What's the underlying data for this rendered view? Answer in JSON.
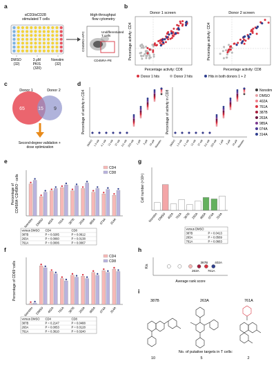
{
  "panel_letters": [
    "a",
    "b",
    "c",
    "d",
    "e",
    "f",
    "g",
    "h",
    "i"
  ],
  "colors": {
    "red": "#d9323f",
    "blue": "#2f3f8f",
    "gray": "#b8b8b8",
    "pink": "#f7b8b6",
    "lavender": "#b9b3de",
    "green": "#64b15e",
    "orange": "#e88a1a",
    "lightpink": "#f4a6a8"
  },
  "panel_a": {
    "plate_title": "αCD3/αCD28\nstimulated T cells",
    "plate_groups": [
      {
        "label": "DMSO",
        "count": "(32)"
      },
      {
        "label": "3 μM\nPKIS\n(320)",
        "count": ""
      },
      {
        "label": "Nonstim",
        "count": "(32)"
      }
    ],
    "flow_title": "High-throughput\nflow cytometry",
    "flow_gate_label": "Undifferentiated\nT cells",
    "flow_xlabel": "CD45RA-PE",
    "flow_ylabel": "CD45RO-APC"
  },
  "panel_b": {
    "titles": [
      "Donor 1 screen",
      "Donor 2 screen"
    ],
    "xlabel": "Percentage activity: CD8",
    "ylabel": "Percentage activity: CD4",
    "legend": [
      {
        "label": "Donor 1 hits",
        "color": "red"
      },
      {
        "label": "Donor 2 hits",
        "color": "gray"
      },
      {
        "label": "Hits in both donors 1 + 2",
        "color": "blue"
      }
    ]
  },
  "panel_c": {
    "left_label": "Donor 1",
    "right_label": "Donor 2",
    "left_count": "65",
    "overlap_count": "15",
    "right_count": "9",
    "arrow_caption": "Second-degree validation +\ndose optimization"
  },
  "panel_d": {
    "ylabels": [
      "Percentage of activity in CD4",
      "Percentage of activity in CD8"
    ],
    "x_ticks": [
      "DMSO",
      "1.5 nM",
      "4.1 nM",
      "12 nM",
      "37 nM",
      "111 nM",
      "333 nM",
      "1 μM",
      "3 μM",
      "10 μM",
      "Nonstim"
    ],
    "legend": [
      {
        "label": "Nonstim",
        "color": "#3a3a3a"
      },
      {
        "label": "DMSO",
        "color": "#e9a1a6"
      },
      {
        "label": "402A",
        "color": "#ef7a85"
      },
      {
        "label": "761A",
        "color": "#d9323f"
      },
      {
        "label": "387B",
        "color": "#a51d3d"
      },
      {
        "label": "263A",
        "color": "#6b1640"
      },
      {
        "label": "985A",
        "color": "#7d3a8f"
      },
      {
        "label": "074A",
        "color": "#4b3a94"
      },
      {
        "label": "314A",
        "color": "#2f3f8f"
      }
    ]
  },
  "panel_e": {
    "ylabel": "Percentage of\nCD45RA⁺CD45RO⁻ cells",
    "categories": [
      "Nonstim",
      "DMSO",
      "402A",
      "761A",
      "387B",
      "263A",
      "985A",
      "074A",
      "314A"
    ],
    "legend": [
      {
        "label": "CD4",
        "color": "pink"
      },
      {
        "label": "CD8",
        "color": "lavender"
      }
    ],
    "table_header": [
      "versus DMSO",
      "CD4",
      "CD8"
    ],
    "table_rows": [
      [
        "387B",
        "P = 0.0285",
        "P = 0.0612"
      ],
      [
        "263A",
        "P = 0.0060",
        "P = 0.0138"
      ],
      [
        "761A",
        "P = 0.0006",
        "P = 0.0067"
      ]
    ]
  },
  "panel_f": {
    "ylabel": "Percentage of CD69⁺cells",
    "categories": [
      "Nonstim",
      "DMSO",
      "402A",
      "761A",
      "387B",
      "263A",
      "985A",
      "074A",
      "314A"
    ],
    "legend": [
      {
        "label": "CD4",
        "color": "pink"
      },
      {
        "label": "CD8",
        "color": "lavender"
      }
    ],
    "table_header": [
      "versus DMSO",
      "CD4",
      "CD8"
    ],
    "table_rows": [
      [
        "387B",
        "P = 0.2147",
        "P = 0.0488"
      ],
      [
        "263A",
        "P = 0.0053",
        "P = 0.0128"
      ],
      [
        "761A",
        "P = 0.3610",
        "P = 0.0240"
      ]
    ]
  },
  "panel_g": {
    "ylabel": "Cell number (×10⁶)",
    "categories": [
      "Nonstim",
      "DMSO",
      "402A",
      "761A",
      "387B",
      "263A",
      "985A",
      "074A",
      "314A"
    ],
    "table_header": [
      "versus DMSO",
      ""
    ],
    "table_rows": [
      [
        "387B",
        "P = 0.0413"
      ],
      [
        "263A",
        "P = 0.0569"
      ],
      [
        "761A",
        "P = 0.0663"
      ]
    ]
  },
  "panel_h": {
    "ylabel": "Kis",
    "xlabel": "Average rank score",
    "labels": [
      "387B",
      "402A",
      "263A",
      "761A"
    ]
  },
  "panel_i": {
    "compounds": [
      "387B",
      "263A",
      "761A"
    ],
    "caption": "No. of putative targets in T cells:",
    "targets": [
      "10",
      "5",
      "2"
    ]
  },
  "chart_data": [
    {
      "type": "bar",
      "panel": "e",
      "categories": [
        "Nonstim",
        "DMSO",
        "402A",
        "761A",
        "387B",
        "263A",
        "985A",
        "074A",
        "314A"
      ],
      "series": [
        {
          "name": "CD4",
          "values": [
            70,
            42,
            55,
            62,
            55,
            60,
            52,
            48,
            45
          ]
        },
        {
          "name": "CD8",
          "values": [
            78,
            52,
            60,
            68,
            66,
            72,
            60,
            58,
            56
          ]
        }
      ],
      "ylim": [
        0,
        100
      ]
    },
    {
      "type": "bar",
      "panel": "f",
      "categories": [
        "Nonstim",
        "DMSO",
        "402A",
        "761A",
        "387B",
        "263A",
        "985A",
        "074A",
        "314A"
      ],
      "series": [
        {
          "name": "CD4",
          "values": [
            2,
            82,
            70,
            55,
            62,
            60,
            68,
            72,
            75
          ]
        },
        {
          "name": "CD8",
          "values": [
            3,
            78,
            65,
            50,
            58,
            55,
            62,
            68,
            70
          ]
        }
      ],
      "ylim": [
        0,
        100
      ]
    },
    {
      "type": "bar",
      "panel": "g",
      "categories": [
        "Nonstim",
        "DMSO",
        "402A",
        "761A",
        "387B",
        "263A",
        "985A",
        "074A",
        "314A"
      ],
      "values": [
        1.1,
        3.6,
        0.9,
        1.5,
        0.8,
        1.3,
        1.8,
        1.6,
        2.0
      ],
      "ylim": [
        0,
        6
      ]
    },
    {
      "type": "scatter",
      "panel": "h",
      "points": [
        {
          "x": 0.2,
          "y": 1,
          "label": ""
        },
        {
          "x": 0.35,
          "y": 1,
          "label": ""
        },
        {
          "x": 0.5,
          "y": 1,
          "label": "263A"
        },
        {
          "x": 0.62,
          "y": 1,
          "label": "387B"
        },
        {
          "x": 0.72,
          "y": 1,
          "label": "761A"
        },
        {
          "x": 0.82,
          "y": 1,
          "label": "402A"
        }
      ]
    }
  ]
}
